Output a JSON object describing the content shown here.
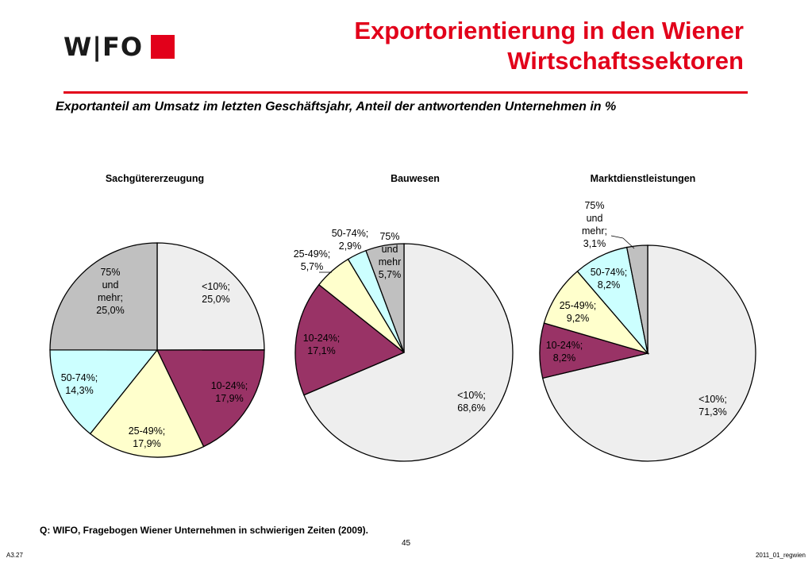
{
  "header": {
    "logo_text": "W|FO",
    "title_lines": [
      "Exportorientierung in den Wiener",
      "Wirtschaftssektoren"
    ],
    "subtitle": "Exportanteil am Umsatz im letzten Geschäftsjahr, Anteil der antwortenden Unternehmen in %",
    "accent_color": "#e2001a"
  },
  "chart_data": [
    {
      "type": "pie",
      "title": "Sachgütererzeugung",
      "slices": [
        {
          "label": "<10%;",
          "value": 25.0,
          "value_text": "25,0%",
          "color": "#eeeeee"
        },
        {
          "label": "10-24%;",
          "value": 17.9,
          "value_text": "17,9%",
          "color": "#993366"
        },
        {
          "label": "25-49%;",
          "value": 17.9,
          "value_text": "17,9%",
          "color": "#ffffcc"
        },
        {
          "label": "50-74%;",
          "value": 14.3,
          "value_text": "14,3%",
          "color": "#ccffff"
        },
        {
          "label": "75% und mehr;",
          "value": 25.0,
          "value_text": "25,0%",
          "color": "#c0c0c0"
        }
      ]
    },
    {
      "type": "pie",
      "title": "Bauwesen",
      "slices": [
        {
          "label": "<10%;",
          "value": 68.6,
          "value_text": "68,6%",
          "color": "#eeeeee"
        },
        {
          "label": "10-24%;",
          "value": 17.1,
          "value_text": "17,1%",
          "color": "#993366"
        },
        {
          "label": "25-49%;",
          "value": 5.7,
          "value_text": "5,7%",
          "color": "#ffffcc"
        },
        {
          "label": "50-74%;",
          "value": 2.9,
          "value_text": "2,9%",
          "color": "#ccffff"
        },
        {
          "label": "75% und mehr",
          "value": 5.7,
          "value_text": "5,7%",
          "color": "#c0c0c0"
        }
      ]
    },
    {
      "type": "pie",
      "title": "Marktdienstleistungen",
      "slices": [
        {
          "label": "<10%;",
          "value": 71.3,
          "value_text": "71,3%",
          "color": "#eeeeee"
        },
        {
          "label": "10-24%;",
          "value": 8.2,
          "value_text": "8,2%",
          "color": "#993366"
        },
        {
          "label": "25-49%;",
          "value": 9.2,
          "value_text": "9,2%",
          "color": "#ffffcc"
        },
        {
          "label": "50-74%;",
          "value": 8.2,
          "value_text": "8,2%",
          "color": "#ccffff"
        },
        {
          "label": "75% und mehr;",
          "value": 3.1,
          "value_text": "3,1%",
          "color": "#c0c0c0"
        }
      ]
    }
  ],
  "footer": {
    "source": "Q: WIFO, Fragebogen Wiener Unternehmen in schwierigen Zeiten (2009).",
    "page_number": "45",
    "left_code": "A3.27",
    "right_code": "2011_01_regwien"
  }
}
